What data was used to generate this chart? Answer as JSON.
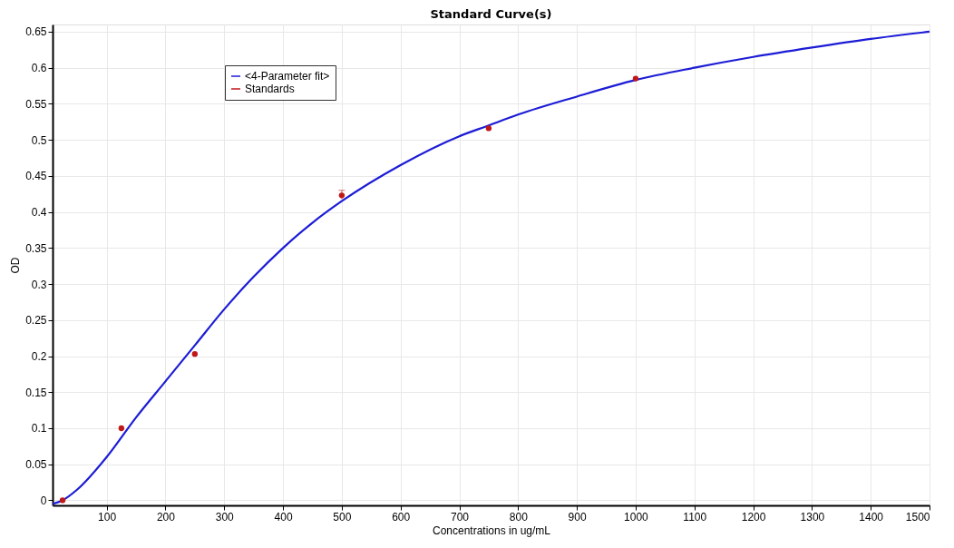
{
  "chart_data": {
    "type": "scatter",
    "title": "Standard Curve(s)",
    "xlabel": "Concentrations in ug/mL",
    "ylabel": "OD",
    "series": [
      {
        "name": "<4-Parameter fit>",
        "type": "line",
        "line_style": "solid",
        "marker": "none",
        "color": "#1c1cd6",
        "x": [
          8,
          25,
          50,
          100,
          150,
          200,
          250,
          300,
          350,
          400,
          450,
          500,
          600,
          700,
          750,
          800,
          900,
          1000,
          1100,
          1200,
          1300,
          1400,
          1500
        ],
        "values": [
          -0.005,
          0.0,
          0.015,
          0.06,
          0.115,
          0.165,
          0.215,
          0.265,
          0.31,
          0.35,
          0.385,
          0.415,
          0.465,
          0.505,
          0.52,
          0.535,
          0.56,
          0.583,
          0.6,
          0.615,
          0.628,
          0.64,
          0.65
        ]
      },
      {
        "name": "Standards",
        "color": "#c01818",
        "x": [
          25,
          125,
          250,
          500,
          750,
          1000
        ],
        "values": [
          0.0,
          0.1,
          0.203,
          0.423,
          0.516,
          0.585
        ],
        "errors": [
          null,
          null,
          null,
          [
            0.418,
            0.43
          ],
          null,
          null
        ]
      }
    ],
    "xlim": [
      8,
      1500
    ],
    "xticks": [
      100,
      200,
      300,
      400,
      500,
      600,
      700,
      800,
      900,
      1000,
      1100,
      1200,
      1300,
      1400,
      1500
    ],
    "ylim": [
      -0.007,
      0.66
    ],
    "yticks": [
      0,
      0.05,
      0.1,
      0.15,
      0.2,
      0.25,
      0.3,
      0.35,
      0.4,
      0.45,
      0.5,
      0.55,
      0.6,
      0.65
    ],
    "grid": true,
    "legend": "top left",
    "marker": "circle"
  }
}
